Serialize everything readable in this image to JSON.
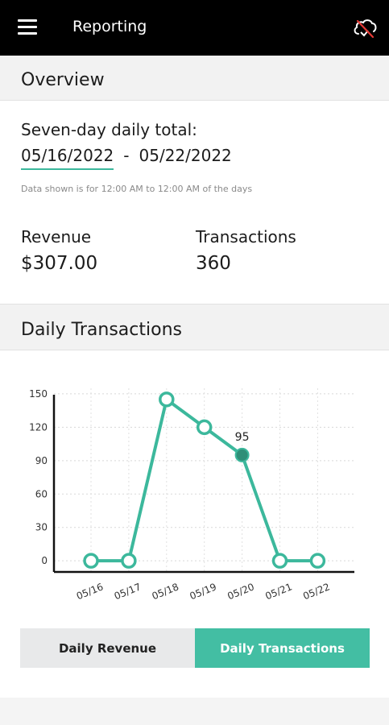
{
  "appbar": {
    "title": "Reporting",
    "menu_icon": "hamburger-menu-icon",
    "status_icon": "cloud-offline-icon"
  },
  "overview": {
    "heading": "Overview",
    "range_caption": "Seven-day daily total:",
    "range_start": "05/16/2022",
    "range_separator": "-",
    "range_end": "05/22/2022",
    "note": "Data shown is for 12:00 AM to 12:00 AM of the days",
    "revenue_label": "Revenue",
    "revenue_value": "$307.00",
    "transactions_label": "Transactions",
    "transactions_value": "360"
  },
  "daily": {
    "heading": "Daily Transactions",
    "toggle_revenue": "Daily Revenue",
    "toggle_transactions": "Daily Transactions"
  },
  "colors": {
    "accent": "#3cb89c",
    "selected_point": "#2f8f78",
    "toggle_active": "#43bea3",
    "toggle_inactive": "#e8e9ea"
  },
  "chart_data": {
    "type": "line",
    "categories": [
      "05/16",
      "05/17",
      "05/18",
      "05/19",
      "05/20",
      "05/21",
      "05/22"
    ],
    "series": [
      {
        "values": [
          0,
          0,
          145,
          120,
          95,
          0,
          0
        ]
      }
    ],
    "yticks": [
      0,
      30,
      60,
      90,
      120,
      150
    ],
    "ylim": [
      -10,
      155
    ],
    "grid": true,
    "highlight": {
      "category": "05/20",
      "label": "95"
    },
    "title": "",
    "xlabel": "",
    "ylabel": ""
  }
}
